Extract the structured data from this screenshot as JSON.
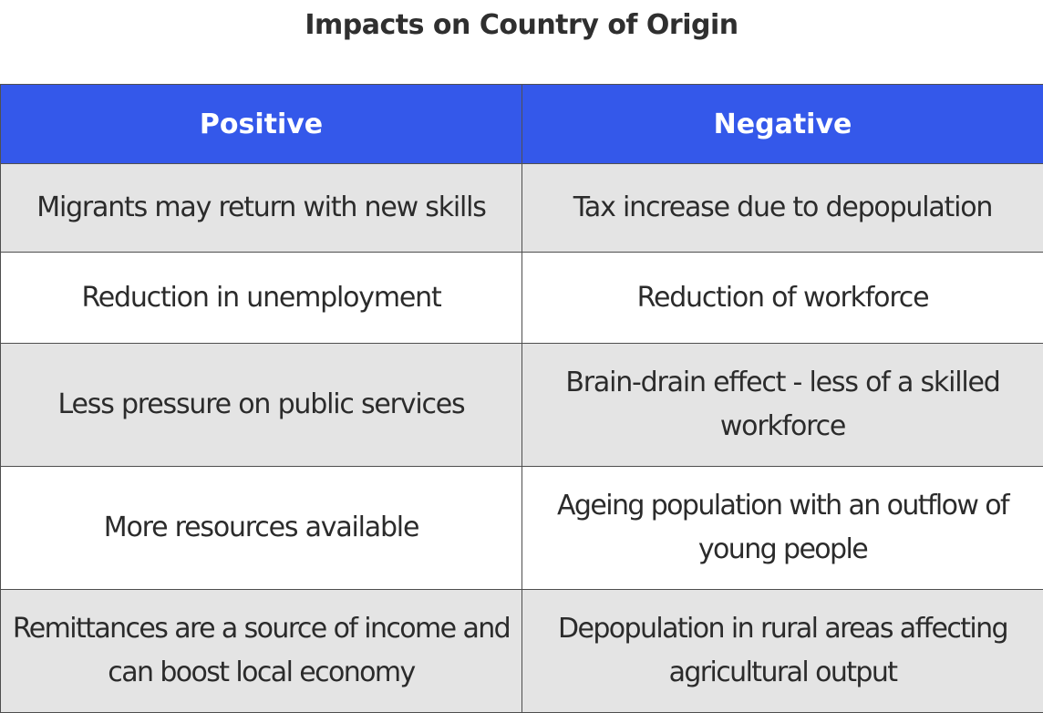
{
  "title": "Impacts on Country of Origin",
  "table": {
    "headers": [
      "Positive",
      "Negative"
    ],
    "rows": [
      [
        "Migrants may return with new skills",
        "Tax increase due to depopulation"
      ],
      [
        "Reduction in unemployment",
        "Reduction of workforce"
      ],
      [
        "Less pressure on public services",
        "Brain-drain effect - less of a skilled workforce"
      ],
      [
        "More resources available",
        "Ageing population with an outflow of young people"
      ],
      [
        "Remittances are a source of income and can boost local economy",
        "Depopulation in rural areas affecting agricultural output"
      ]
    ]
  },
  "colors": {
    "header_background": "#3458ea",
    "header_text": "#ffffff",
    "shaded_row": "#e4e4e4",
    "plain_row": "#ffffff",
    "border": "#4e4e4e"
  }
}
